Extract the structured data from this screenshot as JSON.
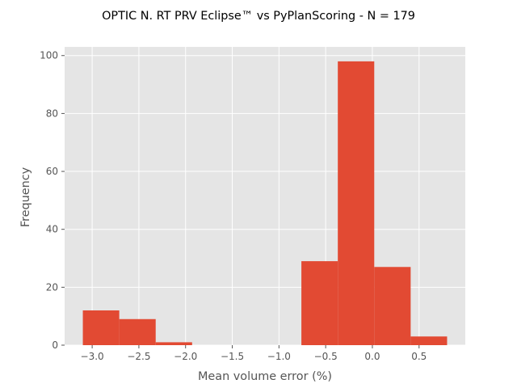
{
  "chart_data": {
    "type": "bar",
    "title": "OPTIC N. RT PRV Eclipse™ vs PyPlanScoring - N = 179",
    "xlabel": "Mean volume error (%)",
    "ylabel": "Frequency",
    "bins": [
      {
        "x0": -3.1,
        "x1": -2.71,
        "count": 12
      },
      {
        "x0": -2.71,
        "x1": -2.32,
        "count": 9
      },
      {
        "x0": -2.32,
        "x1": -1.93,
        "count": 1
      },
      {
        "x0": -1.93,
        "x1": -1.54,
        "count": 0
      },
      {
        "x0": -1.54,
        "x1": -1.15,
        "count": 0
      },
      {
        "x0": -1.15,
        "x1": -0.76,
        "count": 0
      },
      {
        "x0": -0.76,
        "x1": -0.37,
        "count": 29
      },
      {
        "x0": -0.37,
        "x1": 0.02,
        "count": 98
      },
      {
        "x0": 0.02,
        "x1": 0.41,
        "count": 27
      },
      {
        "x0": 0.41,
        "x1": 0.8,
        "count": 3
      }
    ],
    "xlim": [
      -3.295,
      0.995
    ],
    "ylim": [
      0,
      103
    ],
    "xticks": [
      -3.0,
      -2.5,
      -2.0,
      -1.5,
      -1.0,
      -0.5,
      0.0,
      0.5
    ],
    "xtick_labels": [
      "−3.0",
      "−2.5",
      "−2.0",
      "−1.5",
      "−1.0",
      "−0.5",
      "0.0",
      "0.5"
    ],
    "yticks": [
      0,
      20,
      40,
      60,
      80,
      100
    ],
    "ytick_labels": [
      "0",
      "20",
      "40",
      "60",
      "80",
      "100"
    ],
    "grid": true,
    "colors": {
      "bar": "#e24a33",
      "background": "#e5e5e5",
      "grid": "#ffffff",
      "text": "#555555",
      "title": "#000000"
    }
  }
}
